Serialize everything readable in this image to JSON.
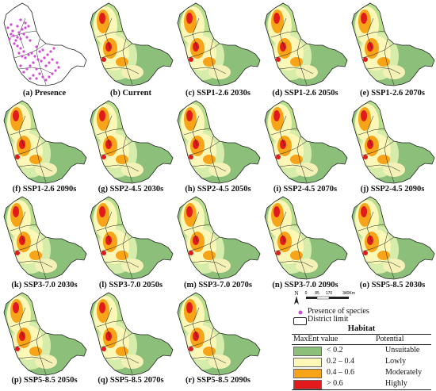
{
  "panels": [
    {
      "label": "(a) Presence",
      "kind": "presence"
    },
    {
      "label": "(b) Current",
      "kind": "suit"
    },
    {
      "label": "(c) SSP1-2.6 2030s",
      "kind": "suit"
    },
    {
      "label": "(d) SSP1-2.6 2050s",
      "kind": "suit"
    },
    {
      "label": "(e) SSP1-2.6 2070s",
      "kind": "suit"
    },
    {
      "label": "(f) SSP1-2.6 2090s",
      "kind": "suit"
    },
    {
      "label": "(g) SSP2-4.5 2030s",
      "kind": "suit"
    },
    {
      "label": "(h) SSP2-4.5 2050s",
      "kind": "suit"
    },
    {
      "label": "(i) SSP2-4.5 2070s",
      "kind": "suit"
    },
    {
      "label": "(j) SSP2-4.5 2090s",
      "kind": "suit"
    },
    {
      "label": "(k) SSP3-7.0 2030s",
      "kind": "suit"
    },
    {
      "label": "(l) SSP3-7.0 2050s",
      "kind": "suit"
    },
    {
      "label": "(m) SSP3-7.0 2070s",
      "kind": "suit"
    },
    {
      "label": "(n) SSP3-7.0 2090s",
      "kind": "suit"
    },
    {
      "label": "(o) SSP5-8.5 2030s",
      "kind": "suit"
    },
    {
      "label": "(p) SSP5-8.5 2050s",
      "kind": "suit"
    },
    {
      "label": "(q) SSP5-8.5 2070s",
      "kind": "suit"
    },
    {
      "label": "(r) SSP5-8.5 2090s",
      "kind": "suit"
    }
  ],
  "scalebar": {
    "north": "N",
    "ticks": [
      "0",
      "85",
      "170",
      "340Km"
    ]
  },
  "legend": {
    "presence_label": "Presence of species",
    "district_label": "District limit",
    "title": "Habitat",
    "col_value": "MaxEnt value",
    "col_potential": "Potential",
    "classes": [
      {
        "value": "< 0.2",
        "potential": "Unsuitable",
        "color": "#8cc07a"
      },
      {
        "value": "0.2 – 0.4",
        "potential": "Lowly",
        "color": "#fbf7b7"
      },
      {
        "value": "0.4 – 0.6",
        "potential": "Moderately",
        "color": "#f7a418"
      },
      {
        "value": "> 0.6",
        "potential": "Highly",
        "color": "#e31a1c"
      }
    ]
  },
  "colors": {
    "presence": "#d24bd2",
    "border": "#222222"
  }
}
